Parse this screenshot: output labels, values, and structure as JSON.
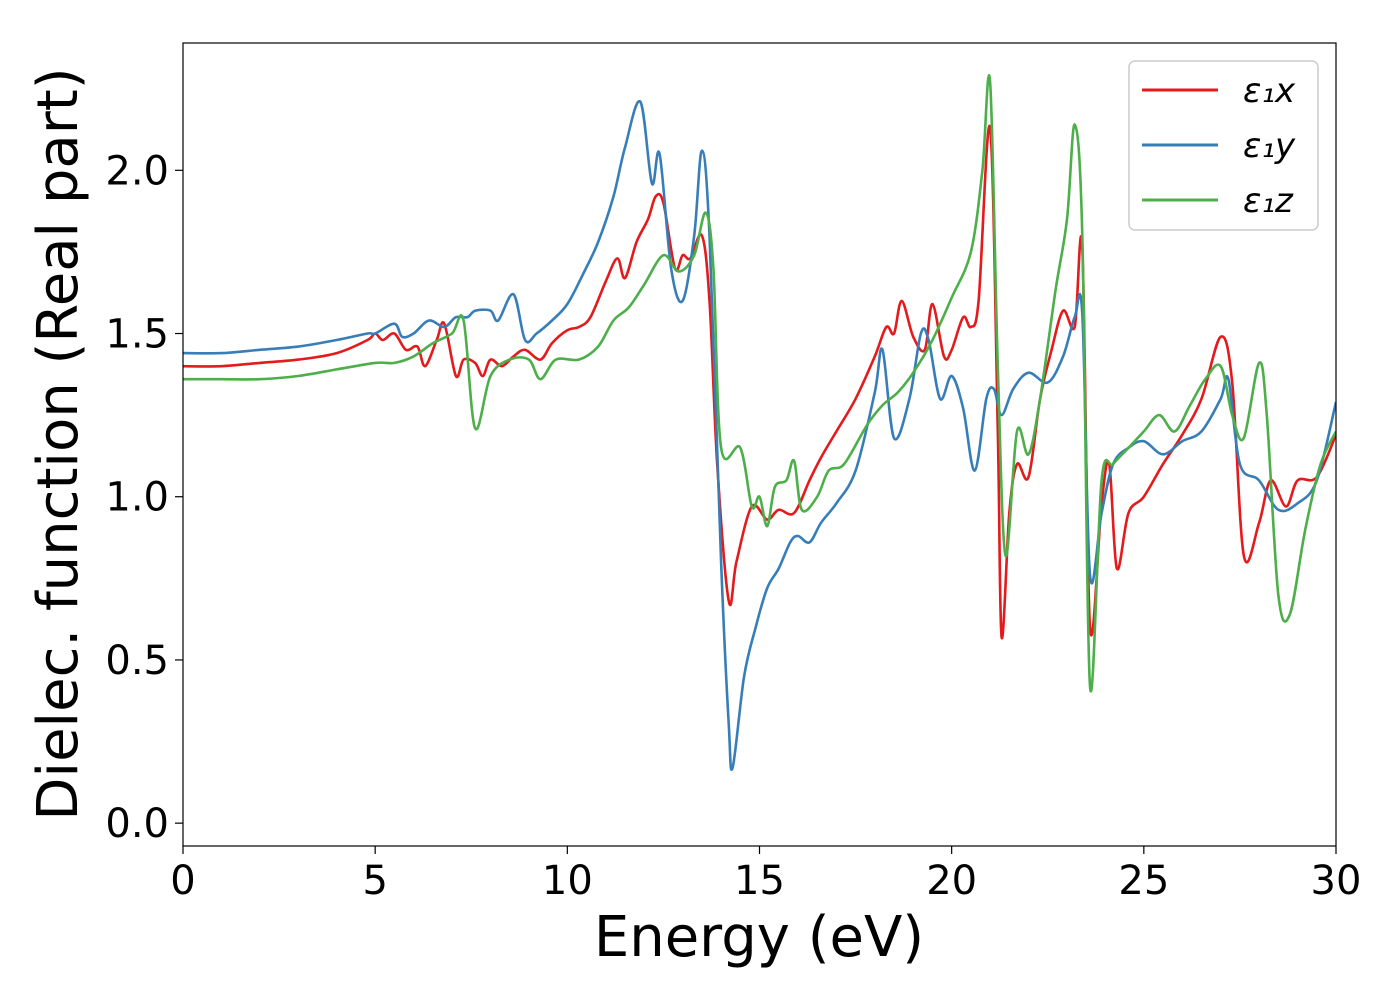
{
  "chart_data": {
    "type": "line",
    "xlabel": "Energy (eV)",
    "ylabel": "Dielec. function (Real part)",
    "xlim": [
      0,
      30
    ],
    "ylim": [
      -0.07,
      2.39
    ],
    "xticks": [
      0,
      5,
      10,
      15,
      20,
      25,
      30
    ],
    "xtick_labels": [
      "0",
      "5",
      "10",
      "15",
      "20",
      "25",
      "30"
    ],
    "yticks": [
      0.0,
      0.5,
      1.0,
      1.5,
      2.0
    ],
    "ytick_labels": [
      "0.0",
      "0.5",
      "1.0",
      "1.5",
      "2.0"
    ],
    "grid": false,
    "legend_position": "top-right",
    "series": [
      {
        "name": "ε₁x",
        "color": "#e41a1c",
        "points": [
          [
            0,
            1.4
          ],
          [
            1,
            1.4
          ],
          [
            2,
            1.41
          ],
          [
            3,
            1.42
          ],
          [
            4,
            1.44
          ],
          [
            4.8,
            1.48
          ],
          [
            5.0,
            1.5
          ],
          [
            5.2,
            1.48
          ],
          [
            5.5,
            1.5
          ],
          [
            5.8,
            1.45
          ],
          [
            6.1,
            1.46
          ],
          [
            6.3,
            1.4
          ],
          [
            6.6,
            1.48
          ],
          [
            6.8,
            1.53
          ],
          [
            7.1,
            1.37
          ],
          [
            7.3,
            1.42
          ],
          [
            7.6,
            1.41
          ],
          [
            7.8,
            1.37
          ],
          [
            8.0,
            1.42
          ],
          [
            8.3,
            1.4
          ],
          [
            8.6,
            1.43
          ],
          [
            8.9,
            1.45
          ],
          [
            9.3,
            1.42
          ],
          [
            9.6,
            1.47
          ],
          [
            10,
            1.51
          ],
          [
            10.3,
            1.52
          ],
          [
            10.6,
            1.55
          ],
          [
            11,
            1.66
          ],
          [
            11.3,
            1.73
          ],
          [
            11.5,
            1.67
          ],
          [
            11.8,
            1.78
          ],
          [
            12.1,
            1.85
          ],
          [
            12.3,
            1.92
          ],
          [
            12.5,
            1.9
          ],
          [
            12.8,
            1.7
          ],
          [
            13.0,
            1.74
          ],
          [
            13.2,
            1.73
          ],
          [
            13.5,
            1.8
          ],
          [
            13.7,
            1.6
          ],
          [
            13.9,
            1.1
          ],
          [
            14.2,
            0.68
          ],
          [
            14.4,
            0.8
          ],
          [
            14.8,
            0.97
          ],
          [
            15.2,
            0.93
          ],
          [
            15.5,
            0.96
          ],
          [
            15.9,
            0.95
          ],
          [
            16.3,
            1.05
          ],
          [
            16.6,
            1.12
          ],
          [
            17.0,
            1.2
          ],
          [
            17.5,
            1.3
          ],
          [
            18.0,
            1.43
          ],
          [
            18.3,
            1.52
          ],
          [
            18.5,
            1.5
          ],
          [
            18.7,
            1.6
          ],
          [
            19.0,
            1.49
          ],
          [
            19.3,
            1.45
          ],
          [
            19.5,
            1.59
          ],
          [
            19.8,
            1.43
          ],
          [
            20.0,
            1.45
          ],
          [
            20.3,
            1.55
          ],
          [
            20.5,
            1.52
          ],
          [
            20.7,
            1.6
          ],
          [
            21.0,
            2.13
          ],
          [
            21.2,
            1.2
          ],
          [
            21.3,
            0.57
          ],
          [
            21.5,
            0.95
          ],
          [
            21.7,
            1.1
          ],
          [
            22.0,
            1.06
          ],
          [
            22.3,
            1.3
          ],
          [
            22.6,
            1.45
          ],
          [
            22.9,
            1.57
          ],
          [
            23.2,
            1.52
          ],
          [
            23.4,
            1.76
          ],
          [
            23.6,
            0.6
          ],
          [
            23.9,
            0.98
          ],
          [
            24.1,
            1.1
          ],
          [
            24.3,
            0.78
          ],
          [
            24.6,
            0.95
          ],
          [
            25.0,
            1.0
          ],
          [
            25.5,
            1.1
          ],
          [
            26.0,
            1.19
          ],
          [
            26.5,
            1.3
          ],
          [
            27.0,
            1.49
          ],
          [
            27.3,
            1.35
          ],
          [
            27.6,
            0.82
          ],
          [
            28.0,
            0.92
          ],
          [
            28.3,
            1.05
          ],
          [
            28.7,
            0.97
          ],
          [
            29.0,
            1.05
          ],
          [
            29.5,
            1.06
          ],
          [
            30,
            1.19
          ]
        ]
      },
      {
        "name": "ε₁y",
        "color": "#377eb8",
        "points": [
          [
            0,
            1.44
          ],
          [
            1,
            1.44
          ],
          [
            2,
            1.45
          ],
          [
            3,
            1.46
          ],
          [
            4,
            1.48
          ],
          [
            4.8,
            1.5
          ],
          [
            5.0,
            1.5
          ],
          [
            5.5,
            1.53
          ],
          [
            5.7,
            1.49
          ],
          [
            6.0,
            1.5
          ],
          [
            6.4,
            1.54
          ],
          [
            6.8,
            1.52
          ],
          [
            7.1,
            1.55
          ],
          [
            7.4,
            1.55
          ],
          [
            7.6,
            1.57
          ],
          [
            8.0,
            1.57
          ],
          [
            8.2,
            1.54
          ],
          [
            8.6,
            1.62
          ],
          [
            8.9,
            1.48
          ],
          [
            9.2,
            1.5
          ],
          [
            9.6,
            1.54
          ],
          [
            10,
            1.59
          ],
          [
            10.4,
            1.68
          ],
          [
            10.8,
            1.78
          ],
          [
            11.2,
            1.92
          ],
          [
            11.5,
            2.07
          ],
          [
            11.9,
            2.21
          ],
          [
            12.2,
            1.96
          ],
          [
            12.4,
            2.05
          ],
          [
            12.7,
            1.7
          ],
          [
            13.0,
            1.6
          ],
          [
            13.3,
            1.8
          ],
          [
            13.5,
            2.06
          ],
          [
            13.7,
            1.8
          ],
          [
            14.0,
            0.8
          ],
          [
            14.2,
            0.3
          ],
          [
            14.3,
            0.17
          ],
          [
            14.6,
            0.45
          ],
          [
            14.9,
            0.6
          ],
          [
            15.2,
            0.72
          ],
          [
            15.5,
            0.78
          ],
          [
            15.8,
            0.86
          ],
          [
            16.0,
            0.88
          ],
          [
            16.3,
            0.86
          ],
          [
            16.6,
            0.92
          ],
          [
            17.0,
            0.98
          ],
          [
            17.5,
            1.08
          ],
          [
            18.0,
            1.32
          ],
          [
            18.2,
            1.45
          ],
          [
            18.5,
            1.18
          ],
          [
            18.9,
            1.3
          ],
          [
            19.2,
            1.5
          ],
          [
            19.4,
            1.48
          ],
          [
            19.7,
            1.3
          ],
          [
            20.0,
            1.37
          ],
          [
            20.3,
            1.27
          ],
          [
            20.6,
            1.08
          ],
          [
            20.9,
            1.3
          ],
          [
            21.1,
            1.33
          ],
          [
            21.3,
            1.25
          ],
          [
            21.6,
            1.33
          ],
          [
            22.0,
            1.38
          ],
          [
            22.5,
            1.35
          ],
          [
            22.9,
            1.43
          ],
          [
            23.2,
            1.55
          ],
          [
            23.4,
            1.56
          ],
          [
            23.6,
            0.76
          ],
          [
            23.9,
            0.95
          ],
          [
            24.2,
            1.1
          ],
          [
            24.6,
            1.15
          ],
          [
            25.0,
            1.17
          ],
          [
            25.5,
            1.13
          ],
          [
            26.0,
            1.17
          ],
          [
            26.5,
            1.2
          ],
          [
            27.0,
            1.3
          ],
          [
            27.2,
            1.36
          ],
          [
            27.5,
            1.1
          ],
          [
            28.0,
            1.05
          ],
          [
            28.5,
            0.96
          ],
          [
            29.0,
            0.98
          ],
          [
            29.5,
            1.05
          ],
          [
            30,
            1.29
          ]
        ]
      },
      {
        "name": "ε₁z",
        "color": "#4daf4a",
        "points": [
          [
            0,
            1.36
          ],
          [
            1,
            1.36
          ],
          [
            2,
            1.36
          ],
          [
            3,
            1.37
          ],
          [
            4,
            1.39
          ],
          [
            5.0,
            1.41
          ],
          [
            5.5,
            1.41
          ],
          [
            6.0,
            1.43
          ],
          [
            6.5,
            1.47
          ],
          [
            7.0,
            1.5
          ],
          [
            7.3,
            1.54
          ],
          [
            7.6,
            1.21
          ],
          [
            8.0,
            1.37
          ],
          [
            8.5,
            1.42
          ],
          [
            9.0,
            1.42
          ],
          [
            9.3,
            1.36
          ],
          [
            9.7,
            1.42
          ],
          [
            10.3,
            1.42
          ],
          [
            10.8,
            1.46
          ],
          [
            11.2,
            1.54
          ],
          [
            11.6,
            1.58
          ],
          [
            12.0,
            1.65
          ],
          [
            12.5,
            1.74
          ],
          [
            12.9,
            1.69
          ],
          [
            13.3,
            1.74
          ],
          [
            13.6,
            1.87
          ],
          [
            13.8,
            1.7
          ],
          [
            14.0,
            1.15
          ],
          [
            14.5,
            1.15
          ],
          [
            14.8,
            0.97
          ],
          [
            15.0,
            1.0
          ],
          [
            15.2,
            0.91
          ],
          [
            15.4,
            1.03
          ],
          [
            15.7,
            1.05
          ],
          [
            15.9,
            1.11
          ],
          [
            16.1,
            0.96
          ],
          [
            16.5,
            1.0
          ],
          [
            16.8,
            1.08
          ],
          [
            17.2,
            1.1
          ],
          [
            17.8,
            1.22
          ],
          [
            18.2,
            1.28
          ],
          [
            18.6,
            1.32
          ],
          [
            19.0,
            1.38
          ],
          [
            19.5,
            1.48
          ],
          [
            20.0,
            1.61
          ],
          [
            20.5,
            1.75
          ],
          [
            20.8,
            2.0
          ],
          [
            21.0,
            2.27
          ],
          [
            21.2,
            1.4
          ],
          [
            21.4,
            0.82
          ],
          [
            21.7,
            1.2
          ],
          [
            22.0,
            1.13
          ],
          [
            22.3,
            1.3
          ],
          [
            22.7,
            1.63
          ],
          [
            23.0,
            1.85
          ],
          [
            23.2,
            2.14
          ],
          [
            23.4,
            1.8
          ],
          [
            23.6,
            0.42
          ],
          [
            23.9,
            1.05
          ],
          [
            24.2,
            1.1
          ],
          [
            24.6,
            1.15
          ],
          [
            25.0,
            1.2
          ],
          [
            25.4,
            1.25
          ],
          [
            25.8,
            1.2
          ],
          [
            26.2,
            1.28
          ],
          [
            26.6,
            1.36
          ],
          [
            27.0,
            1.4
          ],
          [
            27.3,
            1.25
          ],
          [
            27.6,
            1.18
          ],
          [
            28.0,
            1.41
          ],
          [
            28.2,
            1.25
          ],
          [
            28.5,
            0.7
          ],
          [
            28.8,
            0.64
          ],
          [
            29.2,
            0.9
          ],
          [
            29.6,
            1.1
          ],
          [
            30,
            1.2
          ]
        ]
      }
    ]
  }
}
